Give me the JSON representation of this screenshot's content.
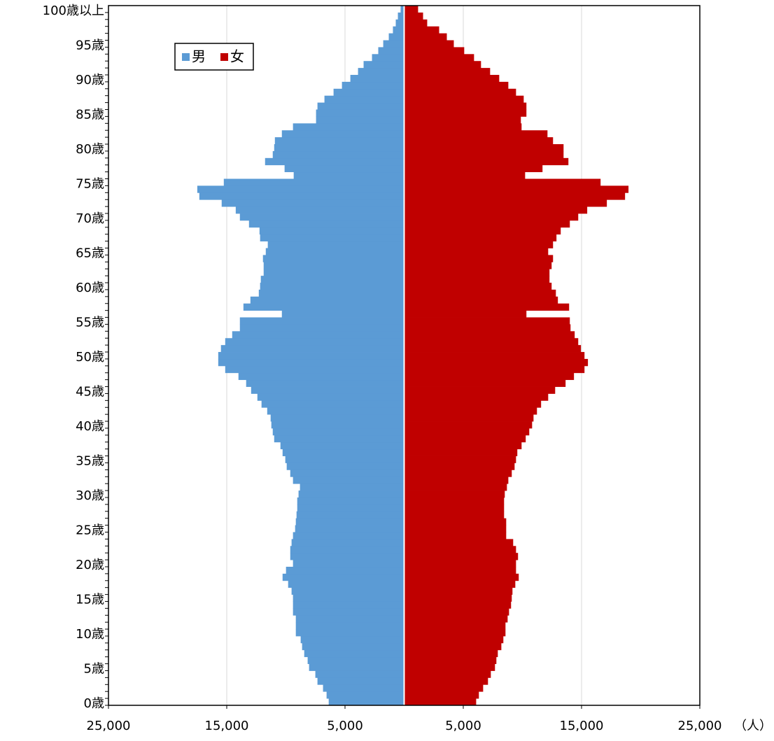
{
  "chart_data": {
    "type": "pyramid",
    "categories": [
      "0歳",
      null,
      null,
      null,
      null,
      "5歳",
      null,
      null,
      null,
      null,
      "10歳",
      null,
      null,
      null,
      null,
      "15歳",
      null,
      null,
      null,
      null,
      "20歳",
      null,
      null,
      null,
      null,
      "25歳",
      null,
      null,
      null,
      null,
      "30歳",
      null,
      null,
      null,
      null,
      "35歳",
      null,
      null,
      null,
      null,
      "40歳",
      null,
      null,
      null,
      null,
      "45歳",
      null,
      null,
      null,
      null,
      "50歳",
      null,
      null,
      null,
      null,
      "55歳",
      null,
      null,
      null,
      null,
      "60歳",
      null,
      null,
      null,
      null,
      "65歳",
      null,
      null,
      null,
      null,
      "70歳",
      null,
      null,
      null,
      null,
      "75歳",
      null,
      null,
      null,
      null,
      "80歳",
      null,
      null,
      null,
      null,
      "85歳",
      null,
      null,
      null,
      null,
      "90歳",
      null,
      null,
      null,
      null,
      "95歳",
      null,
      null,
      null,
      null,
      "100歳以上"
    ],
    "series": [
      {
        "name": "男",
        "color": "#5b9bd5",
        "side": "left",
        "values": [
          6320,
          6500,
          6800,
          7270,
          7450,
          7980,
          8100,
          8390,
          8570,
          8690,
          9100,
          9100,
          9100,
          9340,
          9340,
          9340,
          9460,
          9750,
          10220,
          9930,
          9340,
          9570,
          9570,
          9460,
          9340,
          9160,
          9100,
          9040,
          8980,
          8980,
          8870,
          8750,
          9340,
          9570,
          9870,
          9990,
          10220,
          10400,
          10930,
          11050,
          11170,
          11230,
          11520,
          12000,
          12350,
          12880,
          13300,
          13950,
          15070,
          15660,
          15660,
          15430,
          15070,
          14480,
          13830,
          13830,
          10280,
          13530,
          12940,
          12230,
          12120,
          12060,
          11820,
          11820,
          11880,
          11640,
          11470,
          12120,
          12170,
          13060,
          13830,
          14180,
          15370,
          17260,
          17430,
          15190,
          9280,
          10050,
          11700,
          11050,
          10930,
          10870,
          10280,
          9340,
          7390,
          7390,
          7270,
          6680,
          5910,
          5200,
          4490,
          3840,
          3370,
          2660,
          2130,
          1710,
          1240,
          890,
          650,
          470,
          240
        ]
      },
      {
        "name": "女",
        "color": "#c00000",
        "side": "right",
        "values": [
          6030,
          6260,
          6620,
          7030,
          7270,
          7620,
          7740,
          7860,
          8160,
          8330,
          8510,
          8510,
          8690,
          8810,
          8980,
          9040,
          9100,
          9340,
          9630,
          9400,
          9400,
          9570,
          9400,
          9160,
          8570,
          8570,
          8570,
          8390,
          8390,
          8390,
          8450,
          8630,
          8750,
          9040,
          9280,
          9400,
          9510,
          9870,
          10220,
          10520,
          10760,
          10880,
          11170,
          11520,
          12120,
          12710,
          13590,
          14300,
          15190,
          15480,
          15190,
          14890,
          14660,
          14360,
          14010,
          13950,
          10280,
          13890,
          12940,
          12770,
          12410,
          12230,
          12230,
          12410,
          12530,
          12120,
          12530,
          12820,
          13180,
          13950,
          14660,
          15420,
          17080,
          18620,
          18910,
          16550,
          10170,
          11640,
          13830,
          13420,
          13420,
          12530,
          12060,
          9870,
          9810,
          10280,
          10280,
          10050,
          9400,
          8750,
          7980,
          7210,
          6440,
          5850,
          5020,
          4140,
          3550,
          2900,
          1890,
          1540,
          1120
        ]
      }
    ],
    "xlim": [
      -25000,
      25000
    ],
    "xticks": [
      {
        "value": -25000,
        "label": "25,000"
      },
      {
        "value": -15000,
        "label": "15,000"
      },
      {
        "value": -5000,
        "label": "5,000"
      },
      {
        "value": 5000,
        "label": "5,000"
      },
      {
        "value": 15000,
        "label": "15,000"
      },
      {
        "value": 25000,
        "label": "25,000"
      }
    ],
    "x_unit": "（人）",
    "grid": true,
    "legend": "upper left"
  }
}
